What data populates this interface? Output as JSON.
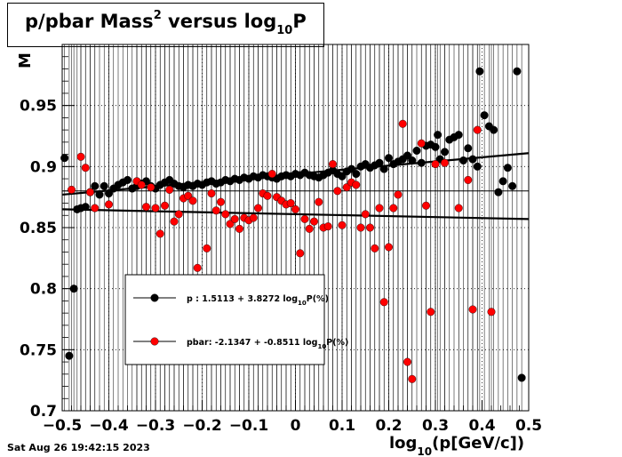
{
  "title": {
    "prefix": "p/pbar Mass",
    "sup": "2",
    "mid": " versus log",
    "sub": "10",
    "suffix": "P"
  },
  "footer": {
    "date": "Sat Aug 26 19:42:15 2023"
  },
  "colors": {
    "p": "#000000",
    "pbar": "#ff0000"
  },
  "chart_data": {
    "type": "scatter",
    "xlim": [
      -0.5,
      0.5
    ],
    "ylim": [
      0.7,
      1.0
    ],
    "grid": true,
    "legend_position": "center-left",
    "x_ticks": [
      "−0.5",
      "−0.4",
      "−0.3",
      "−0.2",
      "−0.1",
      "0",
      "0.1",
      "0.2",
      "0.3",
      "0.4",
      "0.5"
    ],
    "y_ticks": [
      "0.7",
      "0.75",
      "0.8",
      "0.85",
      "0.9",
      "0.95"
    ],
    "x_tick_values": [
      -0.5,
      -0.4,
      -0.3,
      -0.2,
      -0.1,
      0,
      0.1,
      0.2,
      0.3,
      0.4,
      0.5
    ],
    "y_tick_values": [
      0.7,
      0.75,
      0.8,
      0.85,
      0.9,
      0.95
    ],
    "xlabel": {
      "prefix": "log",
      "sub": "10",
      "suffix": "(p[GeV/c])"
    },
    "ylabel": "M",
    "reference_line_y": 0.88,
    "series": [
      {
        "id": "p",
        "legend": {
          "prefix": "p   : 1.5113 + 3.8272 log",
          "sub": "10",
          "suffix": "P(%)"
        },
        "color": "#000000",
        "fit": {
          "from": [
            -0.5,
            0.877
          ],
          "to": [
            0.5,
            0.911
          ]
        },
        "points": [
          [
            -0.495,
            0.907
          ],
          [
            -0.485,
            0.745
          ],
          [
            -0.475,
            0.8
          ],
          [
            -0.468,
            0.865
          ],
          [
            -0.46,
            0.866
          ],
          [
            -0.45,
            0.867
          ],
          [
            -0.44,
            0.879
          ],
          [
            -0.43,
            0.884
          ],
          [
            -0.42,
            0.877
          ],
          [
            -0.41,
            0.884
          ],
          [
            -0.4,
            0.878
          ],
          [
            -0.39,
            0.882
          ],
          [
            -0.38,
            0.885
          ],
          [
            -0.37,
            0.887
          ],
          [
            -0.36,
            0.889
          ],
          [
            -0.35,
            0.882
          ],
          [
            -0.34,
            0.884
          ],
          [
            -0.33,
            0.886
          ],
          [
            -0.32,
            0.888
          ],
          [
            -0.31,
            0.884
          ],
          [
            -0.3,
            0.882
          ],
          [
            -0.29,
            0.885
          ],
          [
            -0.28,
            0.887
          ],
          [
            -0.27,
            0.889
          ],
          [
            -0.26,
            0.886
          ],
          [
            -0.25,
            0.884
          ],
          [
            -0.24,
            0.883
          ],
          [
            -0.23,
            0.885
          ],
          [
            -0.22,
            0.884
          ],
          [
            -0.21,
            0.886
          ],
          [
            -0.2,
            0.885
          ],
          [
            -0.19,
            0.887
          ],
          [
            -0.18,
            0.888
          ],
          [
            -0.17,
            0.886
          ],
          [
            -0.16,
            0.887
          ],
          [
            -0.15,
            0.889
          ],
          [
            -0.14,
            0.888
          ],
          [
            -0.13,
            0.89
          ],
          [
            -0.12,
            0.889
          ],
          [
            -0.11,
            0.891
          ],
          [
            -0.1,
            0.89
          ],
          [
            -0.09,
            0.892
          ],
          [
            -0.08,
            0.891
          ],
          [
            -0.07,
            0.893
          ],
          [
            -0.06,
            0.892
          ],
          [
            -0.05,
            0.891
          ],
          [
            -0.04,
            0.89
          ],
          [
            -0.03,
            0.892
          ],
          [
            -0.02,
            0.893
          ],
          [
            -0.01,
            0.892
          ],
          [
            0.0,
            0.894
          ],
          [
            0.01,
            0.893
          ],
          [
            0.02,
            0.895
          ],
          [
            0.03,
            0.893
          ],
          [
            0.04,
            0.892
          ],
          [
            0.05,
            0.891
          ],
          [
            0.06,
            0.893
          ],
          [
            0.07,
            0.895
          ],
          [
            0.08,
            0.897
          ],
          [
            0.09,
            0.894
          ],
          [
            0.1,
            0.892
          ],
          [
            0.11,
            0.896
          ],
          [
            0.12,
            0.898
          ],
          [
            0.13,
            0.894
          ],
          [
            0.14,
            0.9
          ],
          [
            0.15,
            0.902
          ],
          [
            0.16,
            0.899
          ],
          [
            0.17,
            0.901
          ],
          [
            0.18,
            0.903
          ],
          [
            0.19,
            0.898
          ],
          [
            0.2,
            0.907
          ],
          [
            0.21,
            0.902
          ],
          [
            0.22,
            0.904
          ],
          [
            0.23,
            0.906
          ],
          [
            0.24,
            0.909
          ],
          [
            0.25,
            0.905
          ],
          [
            0.26,
            0.913
          ],
          [
            0.27,
            0.903
          ],
          [
            0.28,
            0.917
          ],
          [
            0.29,
            0.918
          ],
          [
            0.3,
            0.916
          ],
          [
            0.305,
            0.926
          ],
          [
            0.31,
            0.906
          ],
          [
            0.32,
            0.912
          ],
          [
            0.33,
            0.922
          ],
          [
            0.34,
            0.924
          ],
          [
            0.35,
            0.926
          ],
          [
            0.36,
            0.905
          ],
          [
            0.37,
            0.915
          ],
          [
            0.38,
            0.906
          ],
          [
            0.39,
            0.9
          ],
          [
            0.395,
            0.978
          ],
          [
            0.405,
            0.942
          ],
          [
            0.415,
            0.933
          ],
          [
            0.425,
            0.93
          ],
          [
            0.435,
            0.879
          ],
          [
            0.445,
            0.888
          ],
          [
            0.455,
            0.899
          ],
          [
            0.465,
            0.884
          ],
          [
            0.475,
            0.978
          ],
          [
            0.485,
            0.727
          ]
        ]
      },
      {
        "id": "pbar",
        "legend": {
          "prefix": "pbar: -2.1347 + -0.8511 log",
          "sub": "10",
          "suffix": "P(%)"
        },
        "color": "#ff0000",
        "fit": {
          "from": [
            -0.5,
            0.865
          ],
          "to": [
            0.5,
            0.857
          ]
        },
        "points": [
          [
            -0.48,
            0.881
          ],
          [
            -0.46,
            0.908
          ],
          [
            -0.45,
            0.899
          ],
          [
            -0.44,
            0.879
          ],
          [
            -0.43,
            0.866
          ],
          [
            -0.4,
            0.869
          ],
          [
            -0.34,
            0.888
          ],
          [
            -0.33,
            0.885
          ],
          [
            -0.32,
            0.867
          ],
          [
            -0.31,
            0.883
          ],
          [
            -0.3,
            0.866
          ],
          [
            -0.29,
            0.845
          ],
          [
            -0.28,
            0.868
          ],
          [
            -0.27,
            0.881
          ],
          [
            -0.26,
            0.855
          ],
          [
            -0.25,
            0.861
          ],
          [
            -0.24,
            0.874
          ],
          [
            -0.23,
            0.876
          ],
          [
            -0.22,
            0.872
          ],
          [
            -0.21,
            0.817
          ],
          [
            -0.19,
            0.833
          ],
          [
            -0.18,
            0.878
          ],
          [
            -0.17,
            0.864
          ],
          [
            -0.16,
            0.871
          ],
          [
            -0.15,
            0.861
          ],
          [
            -0.14,
            0.853
          ],
          [
            -0.13,
            0.857
          ],
          [
            -0.12,
            0.849
          ],
          [
            -0.11,
            0.858
          ],
          [
            -0.1,
            0.856
          ],
          [
            -0.09,
            0.858
          ],
          [
            -0.08,
            0.866
          ],
          [
            -0.07,
            0.878
          ],
          [
            -0.06,
            0.876
          ],
          [
            -0.05,
            0.894
          ],
          [
            -0.04,
            0.875
          ],
          [
            -0.03,
            0.872
          ],
          [
            -0.02,
            0.869
          ],
          [
            -0.01,
            0.87
          ],
          [
            0.0,
            0.865
          ],
          [
            0.01,
            0.829
          ],
          [
            0.02,
            0.857
          ],
          [
            0.03,
            0.849
          ],
          [
            0.04,
            0.855
          ],
          [
            0.05,
            0.871
          ],
          [
            0.06,
            0.85
          ],
          [
            0.07,
            0.851
          ],
          [
            0.08,
            0.902
          ],
          [
            0.09,
            0.88
          ],
          [
            0.1,
            0.852
          ],
          [
            0.11,
            0.883
          ],
          [
            0.12,
            0.887
          ],
          [
            0.13,
            0.885
          ],
          [
            0.14,
            0.85
          ],
          [
            0.15,
            0.861
          ],
          [
            0.16,
            0.85
          ],
          [
            0.17,
            0.833
          ],
          [
            0.18,
            0.866
          ],
          [
            0.19,
            0.789
          ],
          [
            0.2,
            0.834
          ],
          [
            0.21,
            0.866
          ],
          [
            0.22,
            0.877
          ],
          [
            0.23,
            0.935
          ],
          [
            0.24,
            0.74
          ],
          [
            0.25,
            0.726
          ],
          [
            0.27,
            0.919
          ],
          [
            0.28,
            0.868
          ],
          [
            0.29,
            0.781
          ],
          [
            0.3,
            0.902
          ],
          [
            0.32,
            0.903
          ],
          [
            0.35,
            0.866
          ],
          [
            0.37,
            0.889
          ],
          [
            0.38,
            0.783
          ],
          [
            0.39,
            0.93
          ],
          [
            0.42,
            0.781
          ]
        ]
      }
    ]
  }
}
